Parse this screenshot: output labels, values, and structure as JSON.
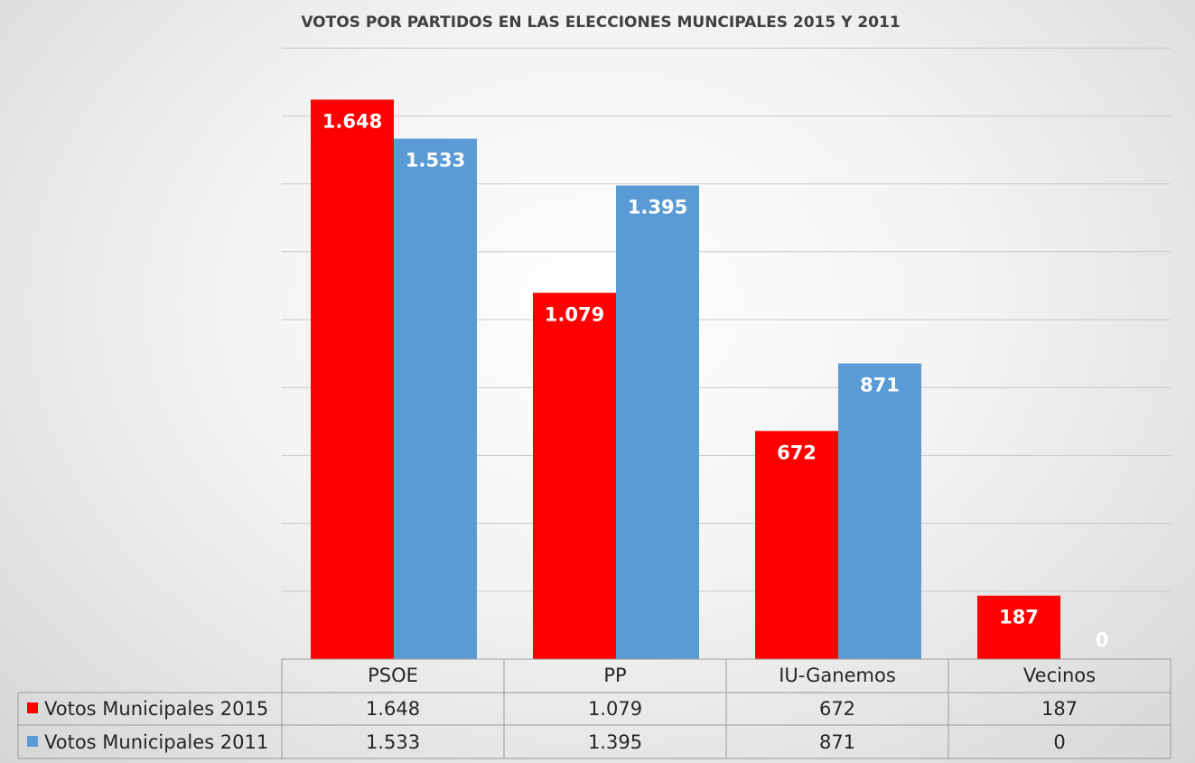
{
  "chart_data": {
    "type": "bar",
    "title": "VOTOS POR PARTIDOS EN LAS ELECCIONES MUNCIPALES 2015 Y 2011",
    "categories": [
      "PSOE",
      "PP",
      "IU-Ganemos",
      "Vecinos"
    ],
    "series": [
      {
        "name": "Votos Municipales 2015",
        "color": "#ff0000",
        "values": [
          1648,
          1079,
          672,
          187
        ],
        "labels": [
          "1.648",
          "1.079",
          "672",
          "187"
        ]
      },
      {
        "name": "Votos Municipales 2011",
        "color": "#5b9bd5",
        "values": [
          1533,
          1395,
          871,
          0
        ],
        "labels": [
          "1.533",
          "1.395",
          "871",
          "0"
        ]
      }
    ],
    "ylim": [
      0,
      1800
    ],
    "grid": true,
    "data_table": true,
    "legend": "data-table"
  }
}
